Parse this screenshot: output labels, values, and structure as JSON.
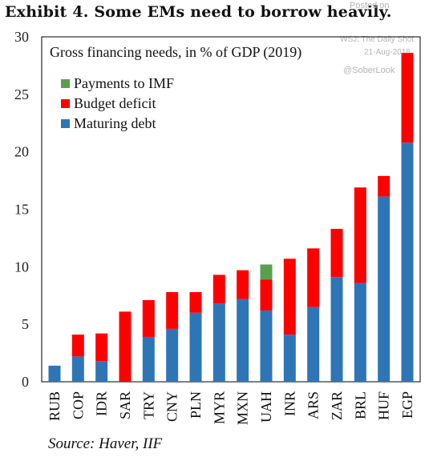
{
  "exhibit_title": "Exhibit 4. Some EMs need to borrow heavily.",
  "watermark": {
    "posted_on": "Posted on",
    "source": "WSJ: The Daily Shot",
    "date": "21-Aug-2018",
    "handle": "@SoberLook"
  },
  "source_note": "Source: Haver, IIF",
  "colors": {
    "maturing_debt": "#2e75b6",
    "budget_deficit": "#ff0000",
    "payments_imf": "#5b9f4e"
  },
  "chart_data": {
    "type": "bar",
    "stacked": true,
    "title": "Gross financing needs, in % of GDP (2019)",
    "xlabel": "",
    "ylabel": "",
    "ylim": [
      0,
      30
    ],
    "yticks": [
      0,
      5,
      10,
      15,
      20,
      25,
      30
    ],
    "grid": false,
    "legend_position": "top-left",
    "categories": [
      "RUB",
      "COP",
      "IDR",
      "SAR",
      "TRY",
      "CNY",
      "PLN",
      "MYR",
      "MXN",
      "UAH",
      "INR",
      "ARS",
      "ZAR",
      "BRL",
      "HUF",
      "EGP"
    ],
    "series": [
      {
        "name": "Maturing debt",
        "color": "#2e75b6",
        "values": [
          1.4,
          2.2,
          1.8,
          0.0,
          3.9,
          4.6,
          6.0,
          6.8,
          7.2,
          6.2,
          4.1,
          6.5,
          9.1,
          8.6,
          16.1,
          20.8
        ]
      },
      {
        "name": "Budget deficit",
        "color": "#ff0000",
        "values": [
          0.0,
          1.9,
          2.4,
          6.1,
          3.2,
          3.2,
          1.8,
          2.5,
          2.5,
          2.7,
          6.6,
          5.1,
          4.2,
          8.3,
          1.8,
          7.8
        ]
      },
      {
        "name": "Payments to IMF",
        "color": "#5b9f4e",
        "values": [
          0,
          0,
          0,
          0,
          0,
          0,
          0,
          0,
          0,
          1.3,
          0,
          0,
          0,
          0,
          0,
          0
        ]
      }
    ],
    "legend": [
      "Payments to IMF",
      "Budget deficit",
      "Maturing debt"
    ]
  }
}
